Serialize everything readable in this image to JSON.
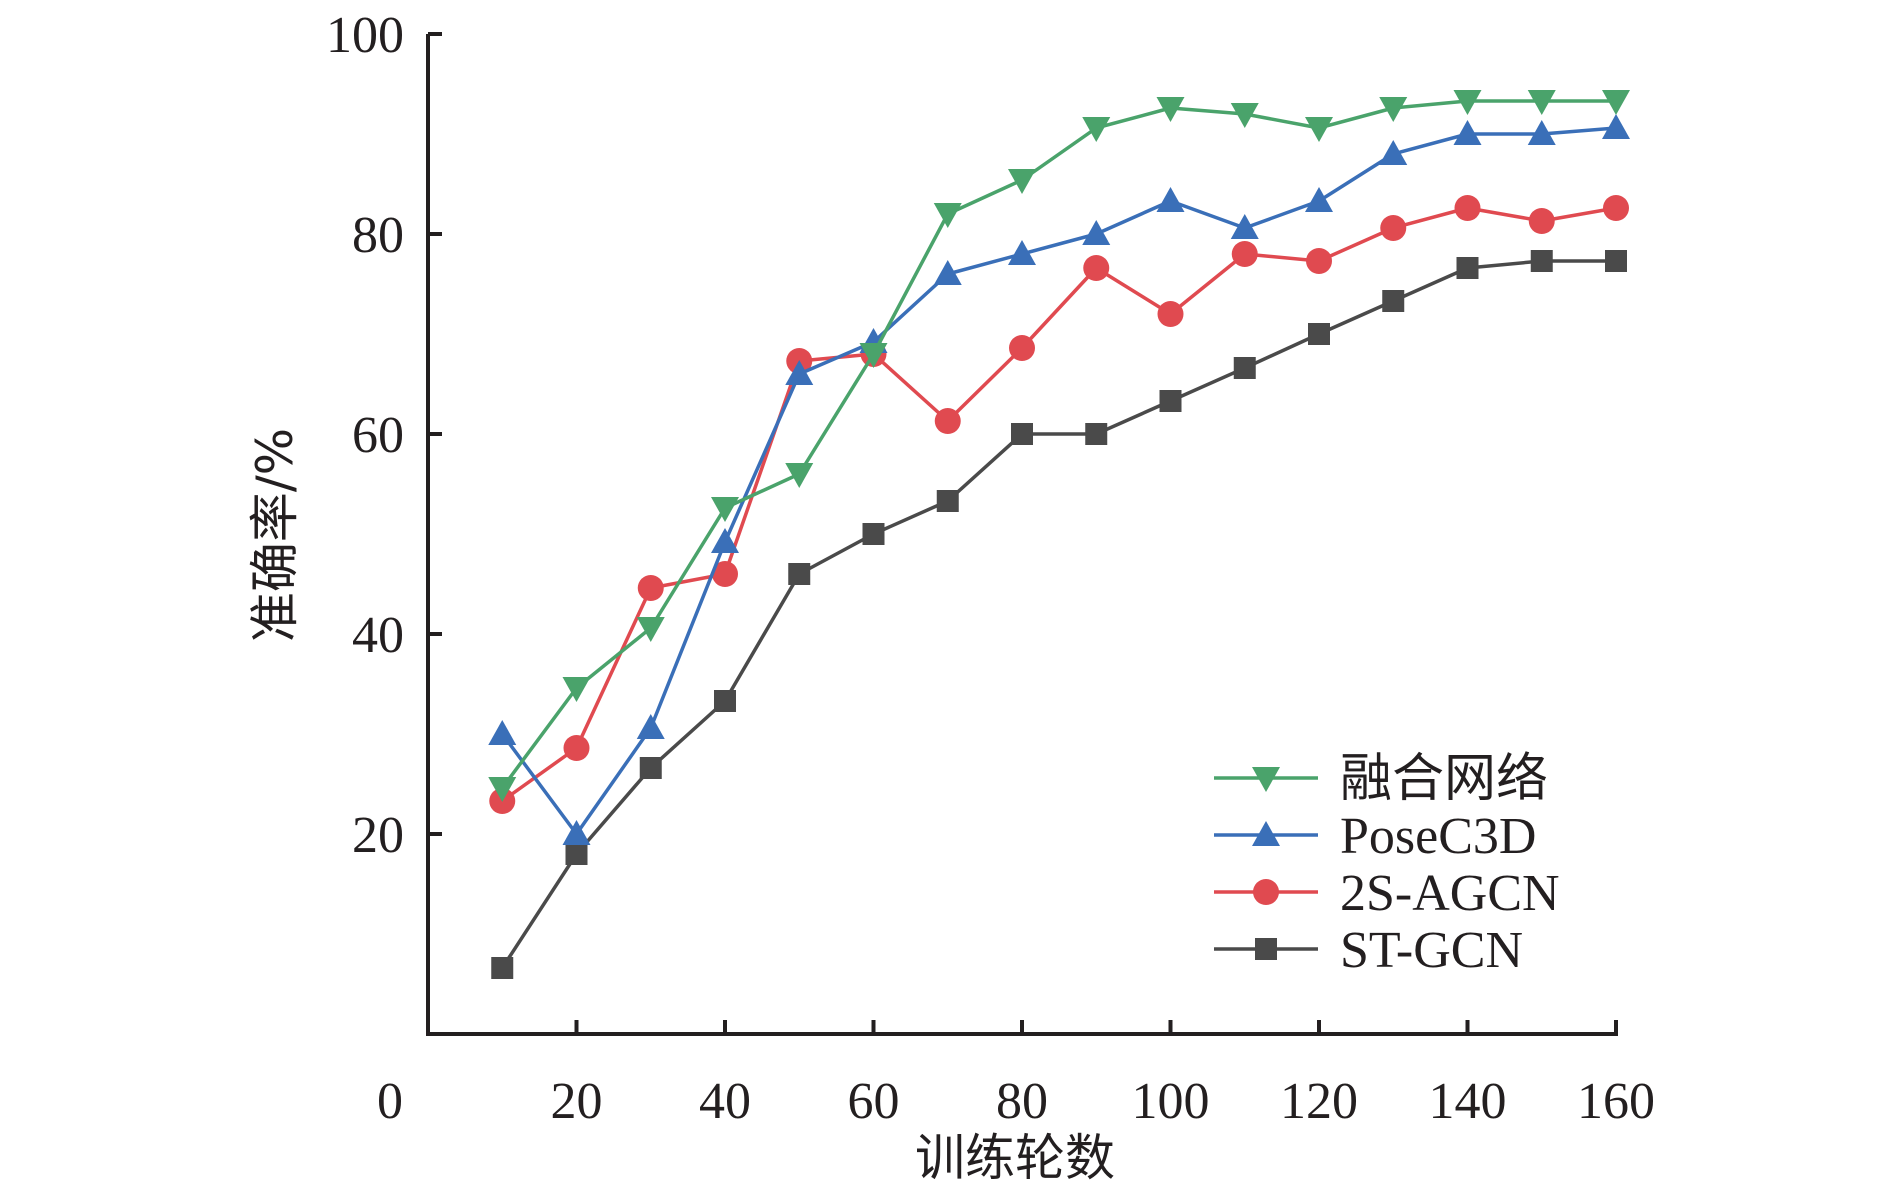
{
  "chart_data": {
    "type": "line",
    "title": "",
    "xlabel": "训练轮数",
    "ylabel": "准确率/%",
    "xlim": [
      0,
      160
    ],
    "ylim": [
      0,
      100
    ],
    "x_ticks": [
      "0",
      "20",
      "40",
      "60",
      "80",
      "100",
      "120",
      "140",
      "160"
    ],
    "y_ticks": [
      "20",
      "40",
      "60",
      "80",
      "100"
    ],
    "grid": false,
    "legend_position": "bottom-right",
    "x": [
      10,
      20,
      30,
      40,
      50,
      60,
      70,
      80,
      90,
      100,
      110,
      120,
      130,
      140,
      150,
      160
    ],
    "series": [
      {
        "name": "融合网络",
        "color": "#4aa36b",
        "marker": "triangle-down",
        "values": [
          24.6,
          34.6,
          40.6,
          52.6,
          56.0,
          68.0,
          82.0,
          85.4,
          90.6,
          92.6,
          92.0,
          90.6,
          92.6,
          93.3,
          93.3,
          93.3
        ]
      },
      {
        "name": "PoseC3D",
        "color": "#3a6fb8",
        "marker": "triangle-up",
        "values": [
          30.0,
          20.0,
          30.6,
          49.2,
          66.0,
          69.2,
          76.0,
          78.0,
          80.0,
          83.3,
          80.6,
          83.3,
          88.0,
          90.0,
          90.0,
          90.6
        ]
      },
      {
        "name": "2S-AGCN",
        "color": "#e04a50",
        "marker": "circle",
        "values": [
          23.3,
          28.6,
          44.6,
          46.0,
          67.3,
          68.0,
          61.3,
          68.6,
          76.6,
          72.0,
          78.0,
          77.3,
          80.6,
          82.6,
          81.3,
          82.6
        ]
      },
      {
        "name": "ST-GCN",
        "color": "#4a4a4a",
        "marker": "square",
        "values": [
          6.6,
          18.0,
          26.6,
          33.3,
          46.0,
          50.0,
          53.3,
          60.0,
          60.0,
          63.3,
          66.6,
          70.0,
          73.3,
          76.6,
          77.3,
          77.3
        ]
      }
    ]
  }
}
